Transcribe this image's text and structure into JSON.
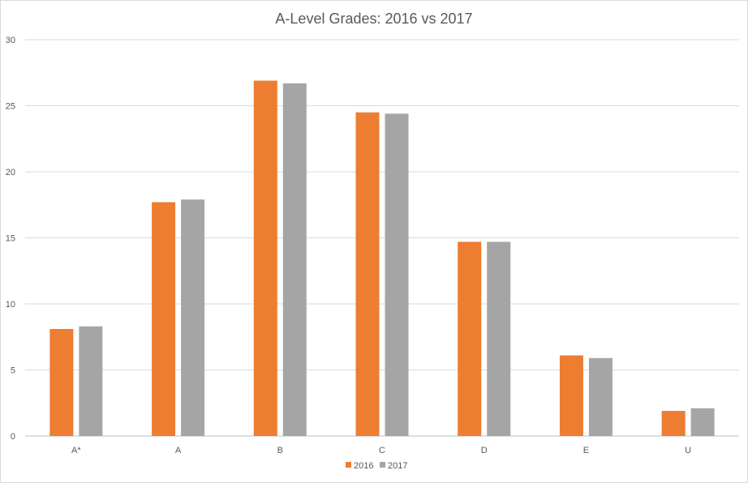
{
  "chart_data": {
    "type": "bar",
    "title": "A-Level Grades: 2016 vs 2017",
    "xlabel": "",
    "ylabel": "",
    "categories": [
      "A*",
      "A",
      "B",
      "C",
      "D",
      "E",
      "U"
    ],
    "series": [
      {
        "name": "2016",
        "color": "#ED7D31",
        "values": [
          8.1,
          17.7,
          26.9,
          24.5,
          14.7,
          6.1,
          1.9
        ]
      },
      {
        "name": "2017",
        "color": "#A5A5A5",
        "values": [
          8.3,
          17.9,
          26.7,
          24.4,
          14.7,
          5.9,
          2.1
        ]
      }
    ],
    "ylim": [
      0,
      30
    ],
    "yticks": [
      0,
      5,
      10,
      15,
      20,
      25,
      30
    ],
    "grid": true,
    "legend": "bottom"
  }
}
